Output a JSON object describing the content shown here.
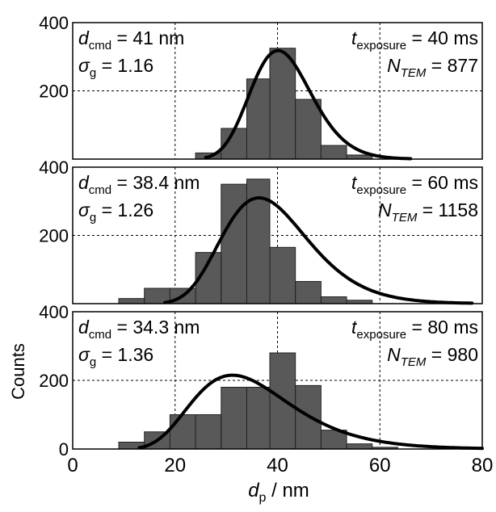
{
  "chart_data": {
    "type": "bar",
    "layout": "stacked-panels",
    "xlabel": "d",
    "xlabel_sub": "p",
    "xlabel_unit": " / nm",
    "ylabel": "Counts",
    "xlim": [
      0,
      80
    ],
    "ylim": [
      0,
      400
    ],
    "xticks": [
      "0",
      "20",
      "40",
      "60",
      "80"
    ],
    "yticks": [
      "0",
      "200",
      "400"
    ],
    "grid": "dashed",
    "bar_color": "#595959",
    "curve_color": "#000000",
    "bins": [
      [
        9,
        14
      ],
      [
        14,
        19
      ],
      [
        19,
        24
      ],
      [
        24,
        29
      ],
      [
        29,
        34
      ],
      [
        34,
        38.5
      ],
      [
        38.5,
        43.5
      ],
      [
        43.5,
        48.5
      ],
      [
        48.5,
        53.5
      ],
      [
        53.5,
        58.5
      ],
      [
        58.5,
        63.5
      ]
    ],
    "panels": [
      {
        "left": {
          "l1_main": "d",
          "l1_sub": "cmd",
          "l1_rest": " = 41 nm",
          "l2_main": "σ",
          "l2_sub": "g",
          "l2_rest": " = 1.16"
        },
        "right": {
          "l1_main": "t",
          "l1_sub": "exposure",
          "l1_rest": " = 40 ms",
          "l2_main": "N",
          "l2_sub": "TEM",
          "l2_rest": " = 877"
        },
        "values": [
          0,
          0,
          0,
          18,
          90,
          235,
          325,
          175,
          40,
          12,
          0
        ],
        "curve": {
          "cmd": 41,
          "sigma_g": 1.16,
          "peak": 318,
          "x_start": 26,
          "x_end": 66
        }
      },
      {
        "left": {
          "l1_main": "d",
          "l1_sub": "cmd",
          "l1_rest": " = 38.4 nm",
          "l2_main": "σ",
          "l2_sub": "g",
          "l2_rest": " = 1.26"
        },
        "right": {
          "l1_main": "t",
          "l1_sub": "exposure",
          "l1_rest": " = 60 ms",
          "l2_main": "N",
          "l2_sub": "TEM",
          "l2_rest": " = 1158"
        },
        "values": [
          15,
          45,
          45,
          150,
          350,
          365,
          165,
          65,
          20,
          10,
          0
        ],
        "curve": {
          "cmd": 38.4,
          "sigma_g": 1.26,
          "peak": 310,
          "x_start": 18,
          "x_end": 78
        }
      },
      {
        "left": {
          "l1_main": "d",
          "l1_sub": "cmd",
          "l1_rest": " = 34.3 nm",
          "l2_main": "σ",
          "l2_sub": "g",
          "l2_rest": " = 1.36"
        },
        "right": {
          "l1_main": "t",
          "l1_sub": "exposure",
          "l1_rest": " = 80 ms",
          "l2_main": "N",
          "l2_sub": "TEM",
          "l2_rest": " = 980"
        },
        "values": [
          20,
          50,
          100,
          100,
          180,
          180,
          280,
          185,
          55,
          15,
          5
        ],
        "curve": {
          "cmd": 34.3,
          "sigma_g": 1.36,
          "peak": 215,
          "x_start": 13,
          "x_end": 80
        }
      }
    ]
  }
}
